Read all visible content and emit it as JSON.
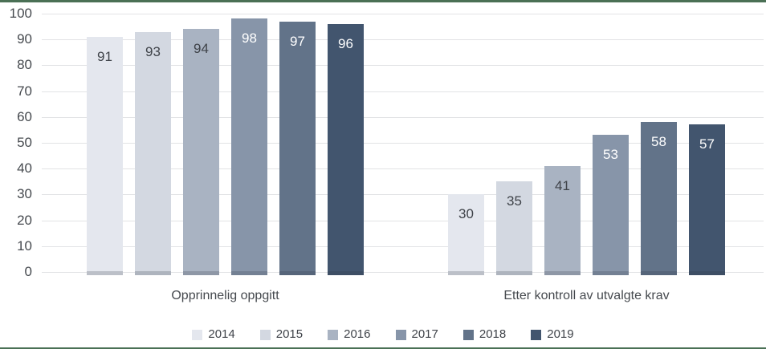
{
  "chart_data": {
    "type": "bar",
    "title": "",
    "xlabel": "",
    "ylabel": "",
    "categories": [
      "Opprinnelig oppgitt",
      "Etter kontroll av utvalgte krav"
    ],
    "series": [
      {
        "name": "2014",
        "values": [
          91,
          30
        ],
        "color": "#e4e7ee",
        "label_color": "#3f4349"
      },
      {
        "name": "2015",
        "values": [
          93,
          35
        ],
        "color": "#d3d8e1",
        "label_color": "#3f4349"
      },
      {
        "name": "2016",
        "values": [
          94,
          41
        ],
        "color": "#a9b3c2",
        "label_color": "#3f4349"
      },
      {
        "name": "2017",
        "values": [
          98,
          53
        ],
        "color": "#8795a9",
        "label_color": "#ffffff"
      },
      {
        "name": "2018",
        "values": [
          97,
          58
        ],
        "color": "#627389",
        "label_color": "#ffffff"
      },
      {
        "name": "2019",
        "values": [
          96,
          57
        ],
        "color": "#42556e",
        "label_color": "#ffffff"
      }
    ],
    "ylim": [
      0,
      100
    ],
    "yticks": [
      0,
      10,
      20,
      30,
      40,
      50,
      60,
      70,
      80,
      90,
      100
    ],
    "grid": true,
    "legend_position": "bottom"
  },
  "colors": {
    "accent_border": "#4a7055",
    "gridline": "#e2e3e5",
    "tick_text": "#45494e",
    "category_text": "#45494e",
    "legend_text": "#3f4349",
    "background": "#ffffff"
  }
}
